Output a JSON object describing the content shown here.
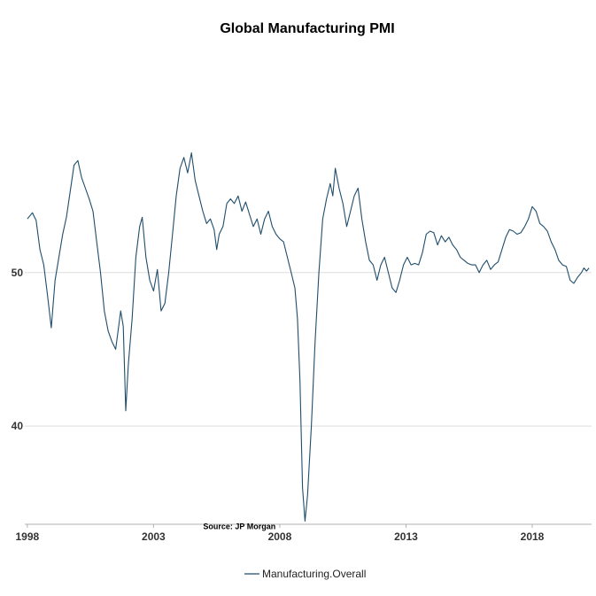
{
  "chart_data": {
    "type": "line",
    "title": "Global Manufacturing PMI",
    "xlabel": "",
    "ylabel": "",
    "xlim": [
      1997.9,
      2020.35
    ],
    "ylim": [
      33.6,
      64.3
    ],
    "x_ticks": [
      {
        "value": 1998,
        "label": "1998"
      },
      {
        "value": 2003,
        "label": "2003"
      },
      {
        "value": 2008,
        "label": "2008"
      },
      {
        "value": 2013,
        "label": "2013"
      },
      {
        "value": 2018,
        "label": "2018"
      }
    ],
    "y_ticks": [
      {
        "value": 40,
        "label": "40"
      },
      {
        "value": 50,
        "label": "50"
      }
    ],
    "grid": true,
    "legend": {
      "position": "bottom",
      "entries": [
        "Manufacturing.Overall"
      ]
    },
    "annotation": {
      "text": "Source: JP Morgan",
      "x": 2006.4,
      "y": 33.5
    },
    "color": "#1f4e6b",
    "series": [
      {
        "name": "Manufacturing.Overall",
        "points": [
          [
            1998.0,
            53.5
          ],
          [
            1998.2,
            53.9
          ],
          [
            1998.35,
            53.4
          ],
          [
            1998.5,
            51.5
          ],
          [
            1998.65,
            50.5
          ],
          [
            1998.8,
            48.5
          ],
          [
            1998.95,
            46.4
          ],
          [
            1999.1,
            49.5
          ],
          [
            1999.25,
            51.0
          ],
          [
            1999.4,
            52.5
          ],
          [
            1999.55,
            53.6
          ],
          [
            1999.7,
            55.3
          ],
          [
            1999.85,
            57.0
          ],
          [
            2000.0,
            57.3
          ],
          [
            2000.15,
            56.2
          ],
          [
            2000.3,
            55.5
          ],
          [
            2000.45,
            54.8
          ],
          [
            2000.6,
            54.0
          ],
          [
            2000.75,
            52.0
          ],
          [
            2000.9,
            50.0
          ],
          [
            2001.05,
            47.5
          ],
          [
            2001.2,
            46.2
          ],
          [
            2001.35,
            45.5
          ],
          [
            2001.5,
            45.0
          ],
          [
            2001.7,
            47.5
          ],
          [
            2001.8,
            46.5
          ],
          [
            2001.9,
            41.0
          ],
          [
            2002.0,
            44.0
          ],
          [
            2002.15,
            47.0
          ],
          [
            2002.3,
            51.0
          ],
          [
            2002.45,
            53.0
          ],
          [
            2002.55,
            53.6
          ],
          [
            2002.7,
            51.0
          ],
          [
            2002.85,
            49.5
          ],
          [
            2003.0,
            48.8
          ],
          [
            2003.15,
            50.2
          ],
          [
            2003.3,
            47.5
          ],
          [
            2003.45,
            48.0
          ],
          [
            2003.6,
            50.0
          ],
          [
            2003.75,
            52.5
          ],
          [
            2003.9,
            55.0
          ],
          [
            2004.05,
            56.8
          ],
          [
            2004.2,
            57.5
          ],
          [
            2004.35,
            56.5
          ],
          [
            2004.5,
            57.8
          ],
          [
            2004.65,
            56.0
          ],
          [
            2004.8,
            55.0
          ],
          [
            2004.95,
            54.0
          ],
          [
            2005.1,
            53.2
          ],
          [
            2005.25,
            53.5
          ],
          [
            2005.4,
            52.8
          ],
          [
            2005.5,
            51.5
          ],
          [
            2005.6,
            52.5
          ],
          [
            2005.75,
            53.0
          ],
          [
            2005.9,
            54.5
          ],
          [
            2006.05,
            54.8
          ],
          [
            2006.2,
            54.5
          ],
          [
            2006.35,
            55.0
          ],
          [
            2006.5,
            54.0
          ],
          [
            2006.65,
            54.6
          ],
          [
            2006.8,
            53.8
          ],
          [
            2006.95,
            53.0
          ],
          [
            2007.1,
            53.5
          ],
          [
            2007.25,
            52.5
          ],
          [
            2007.4,
            53.5
          ],
          [
            2007.55,
            54.0
          ],
          [
            2007.7,
            53.0
          ],
          [
            2007.85,
            52.5
          ],
          [
            2008.0,
            52.2
          ],
          [
            2008.15,
            52.0
          ],
          [
            2008.3,
            51.0
          ],
          [
            2008.45,
            50.0
          ],
          [
            2008.6,
            49.0
          ],
          [
            2008.7,
            47.0
          ],
          [
            2008.8,
            43.0
          ],
          [
            2008.9,
            36.0
          ],
          [
            2009.0,
            33.8
          ],
          [
            2009.1,
            35.5
          ],
          [
            2009.25,
            40.0
          ],
          [
            2009.4,
            45.5
          ],
          [
            2009.55,
            50.0
          ],
          [
            2009.7,
            53.5
          ],
          [
            2009.85,
            54.8
          ],
          [
            2010.0,
            55.8
          ],
          [
            2010.1,
            55.0
          ],
          [
            2010.2,
            56.8
          ],
          [
            2010.35,
            55.5
          ],
          [
            2010.5,
            54.5
          ],
          [
            2010.65,
            53.0
          ],
          [
            2010.8,
            54.0
          ],
          [
            2010.95,
            55.0
          ],
          [
            2011.1,
            55.5
          ],
          [
            2011.25,
            53.5
          ],
          [
            2011.4,
            52.0
          ],
          [
            2011.55,
            50.8
          ],
          [
            2011.7,
            50.5
          ],
          [
            2011.85,
            49.5
          ],
          [
            2012.0,
            50.5
          ],
          [
            2012.15,
            51.0
          ],
          [
            2012.3,
            50.0
          ],
          [
            2012.45,
            49.0
          ],
          [
            2012.6,
            48.7
          ],
          [
            2012.75,
            49.5
          ],
          [
            2012.9,
            50.5
          ],
          [
            2013.05,
            51.0
          ],
          [
            2013.2,
            50.5
          ],
          [
            2013.35,
            50.6
          ],
          [
            2013.5,
            50.5
          ],
          [
            2013.65,
            51.3
          ],
          [
            2013.8,
            52.5
          ],
          [
            2013.95,
            52.7
          ],
          [
            2014.1,
            52.6
          ],
          [
            2014.25,
            51.8
          ],
          [
            2014.4,
            52.4
          ],
          [
            2014.55,
            52.0
          ],
          [
            2014.7,
            52.3
          ],
          [
            2014.85,
            51.8
          ],
          [
            2015.0,
            51.5
          ],
          [
            2015.15,
            51.0
          ],
          [
            2015.3,
            50.8
          ],
          [
            2015.45,
            50.6
          ],
          [
            2015.6,
            50.5
          ],
          [
            2015.75,
            50.5
          ],
          [
            2015.9,
            50.0
          ],
          [
            2016.05,
            50.5
          ],
          [
            2016.2,
            50.8
          ],
          [
            2016.35,
            50.2
          ],
          [
            2016.5,
            50.5
          ],
          [
            2016.65,
            50.7
          ],
          [
            2016.8,
            51.5
          ],
          [
            2016.95,
            52.3
          ],
          [
            2017.1,
            52.8
          ],
          [
            2017.25,
            52.7
          ],
          [
            2017.4,
            52.5
          ],
          [
            2017.55,
            52.6
          ],
          [
            2017.7,
            53.0
          ],
          [
            2017.85,
            53.5
          ],
          [
            2018.0,
            54.3
          ],
          [
            2018.15,
            54.0
          ],
          [
            2018.3,
            53.2
          ],
          [
            2018.45,
            53.0
          ],
          [
            2018.6,
            52.7
          ],
          [
            2018.75,
            52.0
          ],
          [
            2018.9,
            51.5
          ],
          [
            2019.05,
            50.8
          ],
          [
            2019.2,
            50.5
          ],
          [
            2019.35,
            50.4
          ],
          [
            2019.5,
            49.5
          ],
          [
            2019.65,
            49.3
          ],
          [
            2019.8,
            49.7
          ],
          [
            2019.95,
            50.0
          ],
          [
            2020.05,
            50.3
          ],
          [
            2020.15,
            50.1
          ],
          [
            2020.25,
            50.3
          ]
        ]
      }
    ]
  }
}
